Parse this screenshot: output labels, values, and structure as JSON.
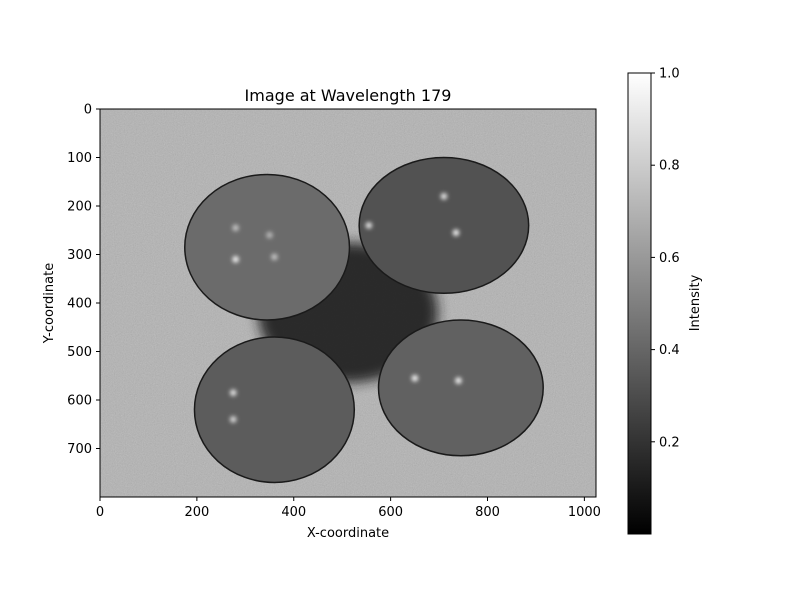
{
  "chart_data": {
    "type": "heatmap",
    "title": "Image at Wavelength 179",
    "xlabel": "X-coordinate",
    "ylabel": "Y-coordinate",
    "xlim": [
      0,
      1024
    ],
    "ylim": [
      800,
      0
    ],
    "x_ticks": [
      0,
      200,
      400,
      600,
      800,
      1000
    ],
    "y_ticks": [
      0,
      100,
      200,
      300,
      400,
      500,
      600,
      700
    ],
    "colormap": "gray",
    "colorbar": {
      "label": "Intensity",
      "range": [
        0.0,
        1.0
      ],
      "ticks": [
        "0.2",
        "0.4",
        "0.6",
        "0.8",
        "1.0"
      ],
      "tick_values": [
        0.2,
        0.4,
        0.6,
        0.8,
        1.0
      ]
    },
    "background_intensity": 0.7,
    "objects": [
      {
        "name": "fruit-top-left",
        "cx": 345,
        "cy": 285,
        "rx": 170,
        "ry": 150,
        "intensity": 0.42
      },
      {
        "name": "fruit-top-right",
        "cx": 710,
        "cy": 240,
        "rx": 175,
        "ry": 140,
        "intensity": 0.32
      },
      {
        "name": "fruit-bottom-left",
        "cx": 360,
        "cy": 620,
        "rx": 165,
        "ry": 150,
        "intensity": 0.36
      },
      {
        "name": "fruit-bottom-right",
        "cx": 745,
        "cy": 575,
        "rx": 170,
        "ry": 140,
        "intensity": 0.38
      }
    ],
    "highlights": [
      {
        "x": 555,
        "y": 240,
        "intensity": 0.95
      },
      {
        "x": 735,
        "y": 255,
        "intensity": 1.0
      },
      {
        "x": 710,
        "y": 180,
        "intensity": 0.95
      },
      {
        "x": 280,
        "y": 310,
        "intensity": 1.0
      },
      {
        "x": 360,
        "y": 305,
        "intensity": 0.8
      },
      {
        "x": 280,
        "y": 245,
        "intensity": 0.8
      },
      {
        "x": 350,
        "y": 260,
        "intensity": 0.75
      },
      {
        "x": 275,
        "y": 585,
        "intensity": 0.95
      },
      {
        "x": 275,
        "y": 640,
        "intensity": 0.9
      },
      {
        "x": 650,
        "y": 555,
        "intensity": 1.0
      },
      {
        "x": 740,
        "y": 560,
        "intensity": 1.0
      }
    ]
  }
}
